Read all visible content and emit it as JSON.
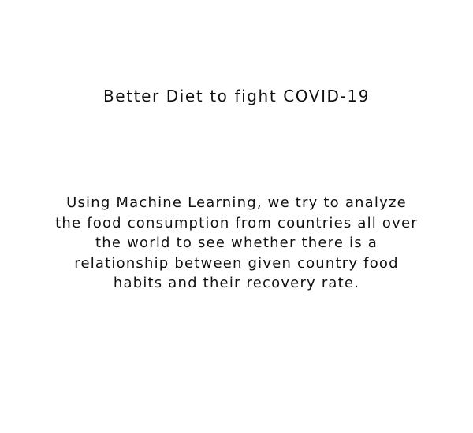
{
  "slide": {
    "title": "Better Diet to fight COVID-19",
    "description_lines": [
      "Using Machine Learning, we try to analyze",
      "the food consumption from countries all over",
      "the world to see whether there is a",
      "relationship between given country food",
      "habits and their recovery rate."
    ]
  }
}
